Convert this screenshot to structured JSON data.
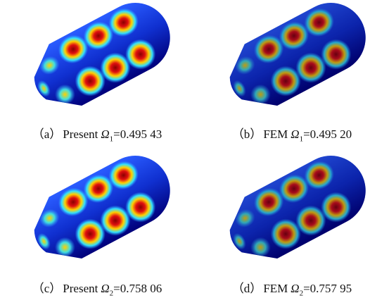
{
  "panels": [
    {
      "label": "（a）",
      "method": "Present",
      "symbol": "Ω",
      "subscript": "1",
      "value": "=0.495 43"
    },
    {
      "label": "（b）",
      "method": "FEM",
      "symbol": "Ω",
      "subscript": "1",
      "value": "=0.495 20"
    },
    {
      "label": "（c）",
      "method": "Present",
      "symbol": "Ω",
      "subscript": "2",
      "value": "=0.758 06"
    },
    {
      "label": "（d）",
      "method": "FEM",
      "symbol": "Ω",
      "subscript": "2",
      "value": "=0.757 95"
    }
  ]
}
